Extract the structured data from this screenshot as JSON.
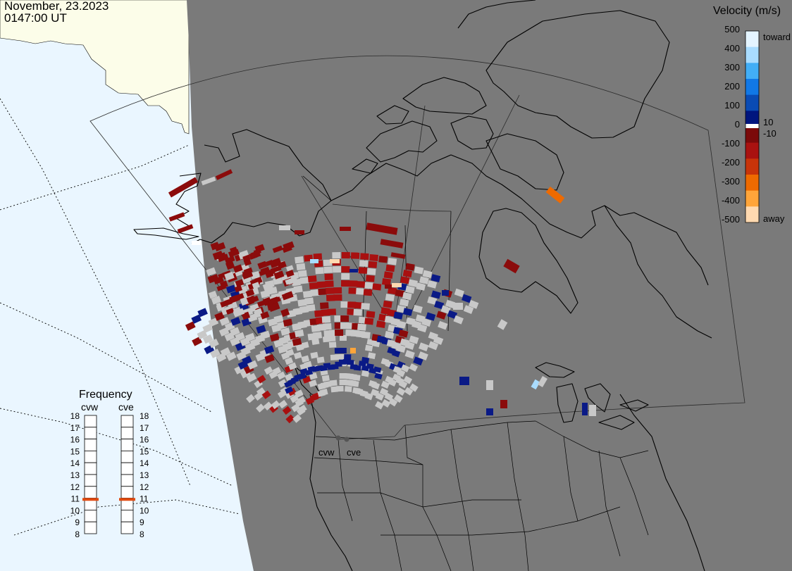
{
  "header": {
    "date": "November, 23.2023",
    "time": "0147:00 UT"
  },
  "velocity_scale": {
    "title": "Velocity (m/s)",
    "ticks": [
      "500",
      "400",
      "300",
      "200",
      "100",
      "0",
      "-100",
      "-200",
      "-300",
      "-400",
      "-500"
    ],
    "inner_ticks": [
      "10",
      "-10"
    ],
    "toward_label": "toward",
    "away_label": "away",
    "colors": [
      "#e4f4ff",
      "#a9dcff",
      "#42aef6",
      "#1178e6",
      "#0a4bb4",
      "#00157e",
      "#7b0a0a",
      "#a91210",
      "#c8340a",
      "#ee6a00",
      "#ffa53a",
      "#ffd9b0"
    ]
  },
  "frequency": {
    "title": "Frequency",
    "radars": [
      "cvw",
      "cve"
    ],
    "ticks": [
      "18",
      "17",
      "16",
      "15",
      "14",
      "13",
      "12",
      "11",
      "10",
      "9",
      "8"
    ],
    "range": [
      8,
      18
    ],
    "values": [
      10.9,
      10.9
    ],
    "marker_color": "#e04a10"
  },
  "map": {
    "radar_labels": [
      "cvw",
      "cve"
    ],
    "colors": {
      "night": "#7a7a7a",
      "day_ocean": "#eaf6ff",
      "day_land": "#fcfde9",
      "coast": "#000000",
      "scatter_ground": "#c8c8c8"
    }
  }
}
